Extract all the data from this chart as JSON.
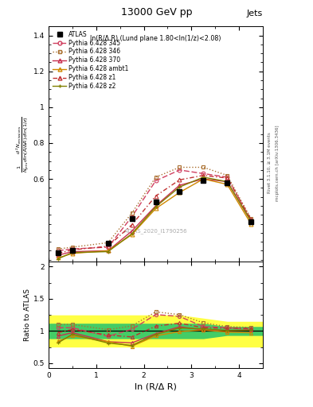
{
  "title": "13000 GeV pp",
  "title_right": "Jets",
  "annotation": "ln(R/Δ R) (Lund plane 1.80<ln(1/z)<2.08)",
  "watermark": "ATLAS_2020_I1790256",
  "ylabel_main": "$\\frac{1}{N_{\\mathrm{jets}}}\\frac{d^2 N_{\\mathrm{emissions}}}{d\\ln(R/\\Delta R)\\,d\\ln(1/z)}$",
  "ylabel_ratio": "Ratio to ATLAS",
  "xlabel": "ln (R/Δ R)",
  "right_label": "Rivet 3.1.10, ≥ 3.1M events",
  "right_label2": "mcplots.cern.ch [arXiv:1306.3436]",
  "xlim": [
    0,
    4.5
  ],
  "ylim_main": [
    0.14,
    1.45
  ],
  "ylim_ratio": [
    0.42,
    2.08
  ],
  "x_atlas": [
    0.2,
    0.5,
    1.25,
    1.75,
    2.25,
    2.75,
    3.25,
    3.75,
    4.25
  ],
  "y_atlas": [
    0.19,
    0.2,
    0.24,
    0.38,
    0.47,
    0.53,
    0.59,
    0.58,
    0.36
  ],
  "x_mc": [
    0.2,
    0.5,
    1.25,
    1.75,
    2.25,
    2.75,
    3.25,
    3.75,
    4.25
  ],
  "y_345": [
    0.2,
    0.21,
    0.22,
    0.39,
    0.59,
    0.65,
    0.63,
    0.61,
    0.37
  ],
  "y_346": [
    0.21,
    0.22,
    0.245,
    0.41,
    0.61,
    0.665,
    0.665,
    0.62,
    0.38
  ],
  "y_370": [
    0.175,
    0.195,
    0.2,
    0.31,
    0.45,
    0.565,
    0.6,
    0.585,
    0.365
  ],
  "y_ambt1": [
    0.16,
    0.185,
    0.2,
    0.29,
    0.435,
    0.525,
    0.6,
    0.57,
    0.35
  ],
  "y_z1": [
    0.185,
    0.205,
    0.225,
    0.345,
    0.505,
    0.595,
    0.62,
    0.605,
    0.375
  ],
  "y_z2": [
    0.155,
    0.19,
    0.195,
    0.295,
    0.445,
    0.555,
    0.61,
    0.585,
    0.365
  ],
  "color_345": "#d04060",
  "color_346": "#aa7030",
  "color_370": "#c83050",
  "color_ambt1": "#d08800",
  "color_z1": "#c03030",
  "color_z2": "#808000",
  "band_x": [
    0.0,
    0.2,
    0.5,
    1.25,
    1.75,
    2.25,
    2.75,
    3.25,
    3.75,
    4.25,
    4.5
  ],
  "band_yellow_lo": [
    0.75,
    0.75,
    0.75,
    0.75,
    0.75,
    0.75,
    0.75,
    0.75,
    0.75,
    0.75,
    0.75
  ],
  "band_yellow_hi": [
    1.25,
    1.25,
    1.25,
    1.25,
    1.25,
    1.25,
    1.25,
    1.2,
    1.15,
    1.15,
    1.15
  ],
  "band_green_lo": [
    0.88,
    0.88,
    0.88,
    0.88,
    0.88,
    0.88,
    0.88,
    0.88,
    0.93,
    0.93,
    0.93
  ],
  "band_green_hi": [
    1.12,
    1.12,
    1.12,
    1.12,
    1.12,
    1.12,
    1.12,
    1.12,
    1.07,
    1.07,
    1.07
  ]
}
